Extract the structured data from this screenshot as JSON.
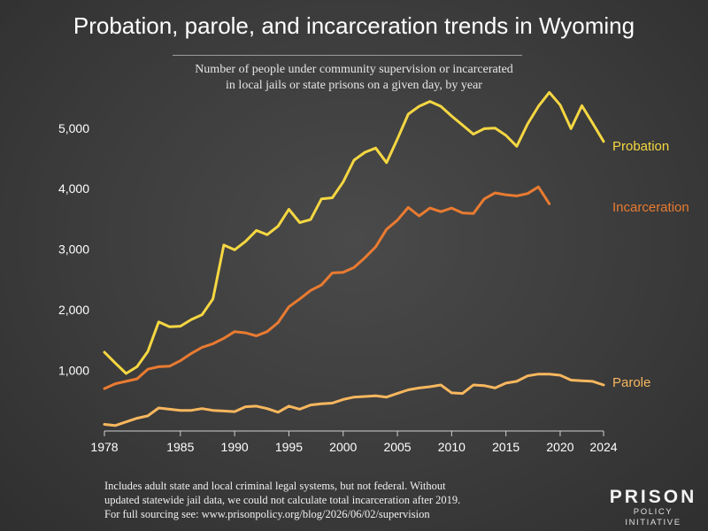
{
  "title": "Probation, parole, and incarceration trends in Wyoming",
  "subtitle_line1": "Number of people under community supervision or incarcerated",
  "subtitle_line2": "in local jails or state prisons on a given day, by year",
  "footnote_line1": "Includes adult state and local criminal legal systems, but not federal. Without",
  "footnote_line2": "updated statewide jail data, we could not calculate total incarceration after 2019.",
  "footnote_line3": "For full sourcing see: www.prisonpolicy.org/blog/2026/06/02/supervision",
  "logo_top": "PRISON",
  "logo_bottom": "POLICY INITIATIVE",
  "chart_data": {
    "type": "line",
    "xlim": [
      1978,
      2024
    ],
    "ylim": [
      0,
      5800
    ],
    "x_ticks": [
      1978,
      1985,
      1990,
      1995,
      2000,
      2005,
      2010,
      2015,
      2020,
      2024
    ],
    "y_ticks": [
      1000,
      2000,
      3000,
      4000,
      5000
    ],
    "y_tick_labels": [
      "1,000",
      "2,000",
      "3,000",
      "4,000",
      "5,000"
    ],
    "grid": false,
    "legend": "inline labels at line ends",
    "series": [
      {
        "name": "Probation",
        "color": "#f5d742",
        "x": [
          1978,
          1979,
          1980,
          1981,
          1982,
          1983,
          1984,
          1985,
          1986,
          1987,
          1988,
          1989,
          1990,
          1991,
          1992,
          1993,
          1994,
          1995,
          1996,
          1997,
          1998,
          1999,
          2000,
          2001,
          2002,
          2003,
          2004,
          2005,
          2006,
          2007,
          2008,
          2009,
          2010,
          2011,
          2012,
          2013,
          2014,
          2015,
          2016,
          2017,
          2018,
          2019,
          2020,
          2021,
          2022,
          2023,
          2024
        ],
        "values": [
          1300,
          1120,
          950,
          1060,
          1310,
          1800,
          1720,
          1730,
          1840,
          1920,
          2180,
          3070,
          2990,
          3130,
          3310,
          3240,
          3380,
          3660,
          3440,
          3490,
          3830,
          3850,
          4110,
          4470,
          4600,
          4670,
          4430,
          4820,
          5230,
          5360,
          5440,
          5360,
          5200,
          5050,
          4900,
          4990,
          5000,
          4880,
          4700,
          5070,
          5360,
          5590,
          5380,
          4990,
          5370,
          5080,
          4780
        ]
      },
      {
        "name": "Incarceration",
        "color": "#e97b31",
        "x": [
          1978,
          1979,
          1980,
          1981,
          1982,
          1983,
          1984,
          1985,
          1986,
          1987,
          1988,
          1989,
          1990,
          1991,
          1992,
          1993,
          1994,
          1995,
          1996,
          1997,
          1998,
          1999,
          2000,
          2001,
          2002,
          2003,
          2004,
          2005,
          2006,
          2007,
          2008,
          2009,
          2010,
          2011,
          2012,
          2013,
          2014,
          2015,
          2016,
          2017,
          2018,
          2019
        ],
        "values": [
          700,
          780,
          820,
          860,
          1020,
          1060,
          1070,
          1160,
          1280,
          1380,
          1440,
          1530,
          1640,
          1620,
          1570,
          1640,
          1790,
          2050,
          2180,
          2320,
          2410,
          2610,
          2620,
          2700,
          2860,
          3040,
          3330,
          3480,
          3690,
          3550,
          3680,
          3620,
          3680,
          3600,
          3590,
          3830,
          3930,
          3900,
          3880,
          3920,
          4030,
          3750
        ]
      },
      {
        "name": "Parole",
        "color": "#f7b75e",
        "x": [
          1978,
          1979,
          1980,
          1981,
          1982,
          1983,
          1984,
          1985,
          1986,
          1987,
          1988,
          1989,
          1990,
          1991,
          1992,
          1993,
          1994,
          1995,
          1996,
          1997,
          1998,
          1999,
          2000,
          2001,
          2002,
          2003,
          2004,
          2005,
          2006,
          2007,
          2008,
          2009,
          2010,
          2011,
          2012,
          2013,
          2014,
          2015,
          2016,
          2017,
          2018,
          2019,
          2020,
          2021,
          2022,
          2023,
          2024
        ],
        "values": [
          110,
          90,
          150,
          210,
          250,
          380,
          360,
          340,
          340,
          370,
          340,
          330,
          320,
          400,
          410,
          370,
          310,
          410,
          360,
          430,
          450,
          460,
          520,
          560,
          570,
          580,
          560,
          620,
          680,
          710,
          730,
          760,
          630,
          620,
          760,
          750,
          710,
          790,
          820,
          910,
          940,
          940,
          920,
          840,
          830,
          820,
          760
        ]
      }
    ]
  }
}
